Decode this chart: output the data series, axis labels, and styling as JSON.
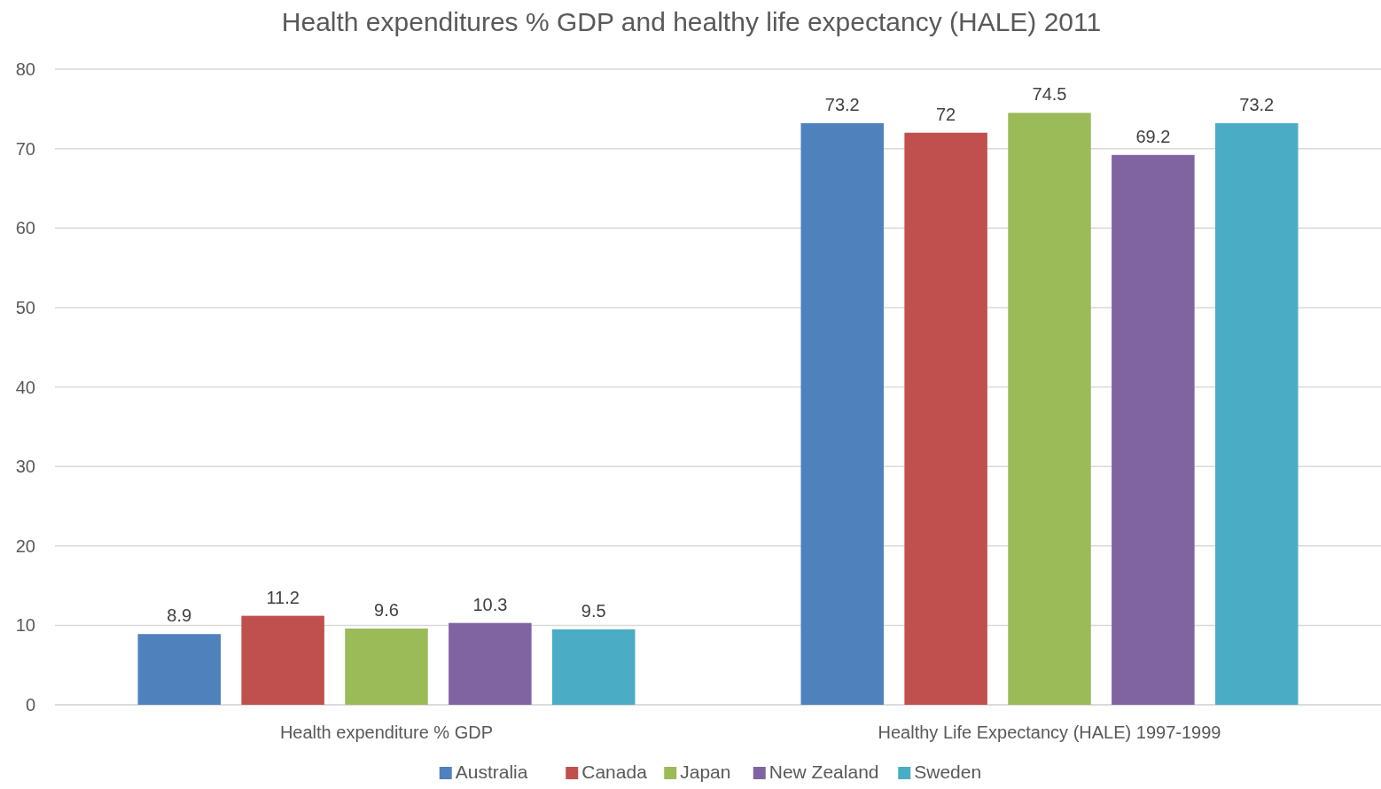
{
  "chart_data": {
    "type": "bar",
    "title": "Health expenditures % GDP and healthy life expectancy (HALE) 2011",
    "categories": [
      "Health expenditure % GDP",
      "Healthy Life Expectancy (HALE) 1997-1999"
    ],
    "series": [
      {
        "name": "Australia",
        "color": "#4f81bd",
        "values": [
          8.9,
          73.2
        ]
      },
      {
        "name": "Canada",
        "color": "#c0504d",
        "values": [
          11.2,
          72
        ]
      },
      {
        "name": "Japan",
        "color": "#9bbb59",
        "values": [
          9.6,
          74.5
        ]
      },
      {
        "name": "New Zealand",
        "color": "#8064a2",
        "values": [
          10.3,
          69.2
        ]
      },
      {
        "name": "Sweden",
        "color": "#4bacc6",
        "values": [
          9.5,
          73.2
        ]
      }
    ],
    "ylim": [
      0,
      80
    ],
    "yticks": [
      0,
      10,
      20,
      30,
      40,
      50,
      60,
      70,
      80
    ],
    "grid": "y",
    "legend": "bottom",
    "data_labels": true
  }
}
